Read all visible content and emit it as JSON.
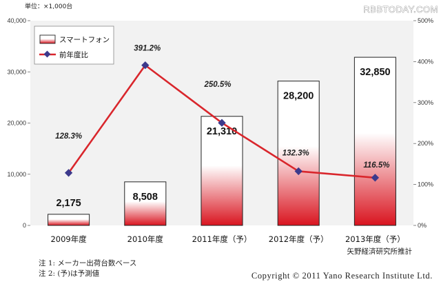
{
  "watermark": "RBBTODAY.COM",
  "unit_label": "単位：×1,000台",
  "source": "矢野経済研究所推計",
  "notes": [
    "注 1: メーカー出荷台数ベース",
    "注 2: (予)は予測値"
  ],
  "copyright": "Copyright © 2011 Yano Research Institute Ltd.",
  "colors": {
    "bar_top": "#ffffff",
    "bar_bottom": "#d9141f",
    "line": "#d9262c",
    "marker": "#3c3a8c",
    "plot_bg": "#f2f2f2"
  },
  "chart_data": {
    "type": "bar",
    "categories": [
      "2009年度",
      "2010年度",
      "2011年度（予）",
      "2012年度（予）",
      "2013年度（予）"
    ],
    "series": [
      {
        "name": "スマートフォン",
        "type": "bar",
        "axis": "left",
        "values": [
          2175,
          8508,
          21310,
          28200,
          32850
        ],
        "labels": [
          "2,175",
          "8,508",
          "21,310",
          "28,200",
          "32,850"
        ]
      },
      {
        "name": "前年度比",
        "type": "line",
        "axis": "right",
        "values": [
          128.3,
          391.2,
          250.5,
          132.3,
          116.5
        ],
        "labels": [
          "128.3%",
          "391.2%",
          "250.5%",
          "132.3%",
          "116.5%"
        ]
      }
    ],
    "y_left": {
      "range": [
        0,
        40000
      ],
      "ticks": [
        "0",
        "10,000",
        "20,000",
        "30,000",
        "40,000"
      ]
    },
    "y_right": {
      "range": [
        0,
        500
      ],
      "ticks": [
        "0%",
        "100%",
        "200%",
        "300%",
        "400%",
        "500%"
      ]
    },
    "legend_position": "top-left",
    "grid": false
  }
}
